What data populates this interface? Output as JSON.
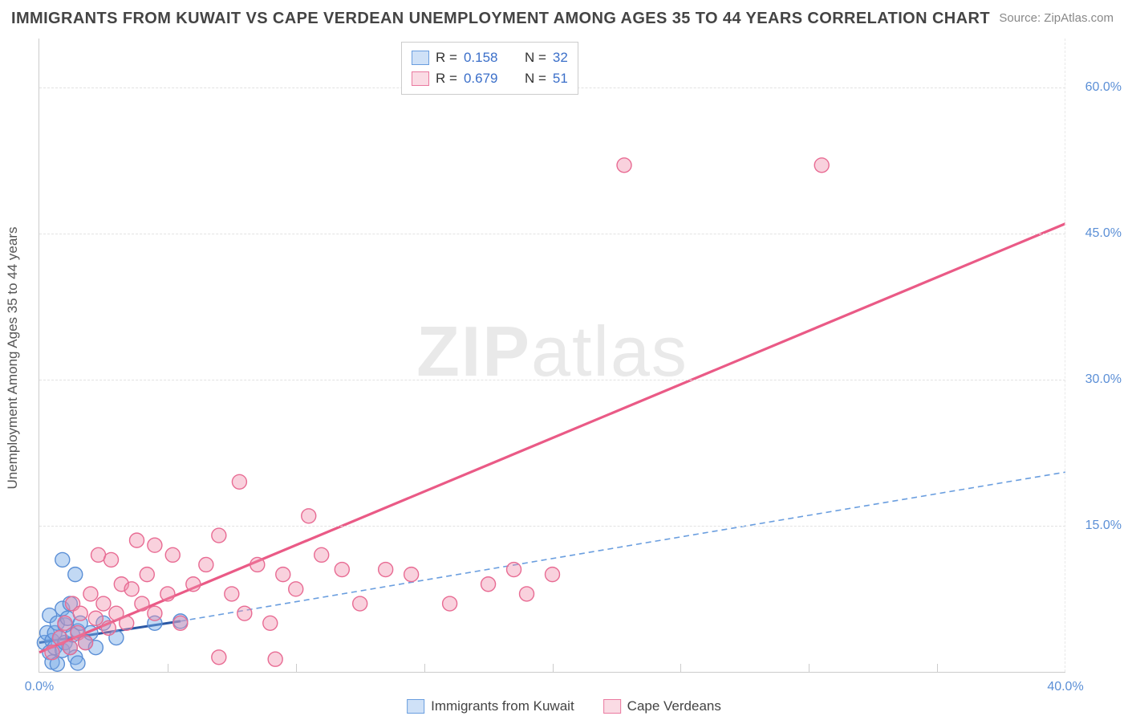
{
  "title": "IMMIGRANTS FROM KUWAIT VS CAPE VERDEAN UNEMPLOYMENT AMONG AGES 35 TO 44 YEARS CORRELATION CHART",
  "source_prefix": "Source: ",
  "source_name": "ZipAtlas.com",
  "yaxis_title": "Unemployment Among Ages 35 to 44 years",
  "watermark": "ZIPatlas",
  "chart": {
    "type": "scatter",
    "xlim": [
      0,
      40
    ],
    "ylim": [
      0,
      65
    ],
    "xticks": [
      0,
      40
    ],
    "xtick_labels": [
      "0.0%",
      "40.0%"
    ],
    "x_minor_ticks": [
      5,
      10,
      15,
      20,
      25,
      30,
      35
    ],
    "yticks": [
      15,
      30,
      45,
      60
    ],
    "ytick_labels": [
      "15.0%",
      "30.0%",
      "45.0%",
      "60.0%"
    ],
    "background_color": "#ffffff",
    "grid_color": "#e2e2e2",
    "marker_radius": 9,
    "marker_stroke_width": 1.4,
    "series": [
      {
        "key": "kuwait",
        "label": "Immigrants from Kuwait",
        "fill_color": "rgba(120,170,230,0.45)",
        "stroke_color": "#5b8fd6",
        "swatch_fill": "#cfe1f7",
        "swatch_border": "#6a9edf",
        "r_value": "0.158",
        "n_value": "32",
        "regression": {
          "x0": 0,
          "y0": 3.0,
          "x1": 5.5,
          "y1": 5.2,
          "stroke": "#2b58a5",
          "width": 3,
          "dash": "none",
          "extend": {
            "x1": 40,
            "y1": 20.5,
            "stroke": "#6a9edf",
            "dash": "7 5",
            "width": 1.6
          }
        },
        "points": [
          [
            0.2,
            3.0
          ],
          [
            0.3,
            4.0
          ],
          [
            0.4,
            2.0
          ],
          [
            0.4,
            5.8
          ],
          [
            0.5,
            3.2
          ],
          [
            0.5,
            1.0
          ],
          [
            0.6,
            4.0
          ],
          [
            0.6,
            2.5
          ],
          [
            0.7,
            5.0
          ],
          [
            0.7,
            0.8
          ],
          [
            0.8,
            3.5
          ],
          [
            0.9,
            6.5
          ],
          [
            0.9,
            2.2
          ],
          [
            1.0,
            4.8
          ],
          [
            1.0,
            3.0
          ],
          [
            1.1,
            5.5
          ],
          [
            1.2,
            2.5
          ],
          [
            1.2,
            7.0
          ],
          [
            1.3,
            3.8
          ],
          [
            1.4,
            1.5
          ],
          [
            1.5,
            4.2
          ],
          [
            1.5,
            0.9
          ],
          [
            1.6,
            5.0
          ],
          [
            1.8,
            3.0
          ],
          [
            0.9,
            11.5
          ],
          [
            1.4,
            10.0
          ],
          [
            2.0,
            4.0
          ],
          [
            2.2,
            2.5
          ],
          [
            2.5,
            5.0
          ],
          [
            3.0,
            3.5
          ],
          [
            4.5,
            5.0
          ],
          [
            5.5,
            5.2
          ]
        ]
      },
      {
        "key": "capeverdean",
        "label": "Cape Verdeans",
        "fill_color": "rgba(240,140,170,0.40)",
        "stroke_color": "#e86b93",
        "swatch_fill": "#fadbe4",
        "swatch_border": "#ea7aa0",
        "r_value": "0.679",
        "n_value": "51",
        "regression": {
          "x0": 0,
          "y0": 2.0,
          "x1": 40,
          "y1": 46.0,
          "stroke": "#ea5a86",
          "width": 3.2,
          "dash": "none"
        },
        "points": [
          [
            0.5,
            2.0
          ],
          [
            0.8,
            3.5
          ],
          [
            1.0,
            5.0
          ],
          [
            1.2,
            2.5
          ],
          [
            1.3,
            7.0
          ],
          [
            1.5,
            4.0
          ],
          [
            1.6,
            6.0
          ],
          [
            1.8,
            3.0
          ],
          [
            2.0,
            8.0
          ],
          [
            2.2,
            5.5
          ],
          [
            2.3,
            12.0
          ],
          [
            2.5,
            7.0
          ],
          [
            2.7,
            4.5
          ],
          [
            2.8,
            11.5
          ],
          [
            3.0,
            6.0
          ],
          [
            3.2,
            9.0
          ],
          [
            3.4,
            5.0
          ],
          [
            3.6,
            8.5
          ],
          [
            3.8,
            13.5
          ],
          [
            4.0,
            7.0
          ],
          [
            4.2,
            10.0
          ],
          [
            4.5,
            6.0
          ],
          [
            4.5,
            13.0
          ],
          [
            5.0,
            8.0
          ],
          [
            5.2,
            12.0
          ],
          [
            5.5,
            5.0
          ],
          [
            6.0,
            9.0
          ],
          [
            6.5,
            11.0
          ],
          [
            7.0,
            1.5
          ],
          [
            7.0,
            14.0
          ],
          [
            7.5,
            8.0
          ],
          [
            7.8,
            19.5
          ],
          [
            8.0,
            6.0
          ],
          [
            8.5,
            11.0
          ],
          [
            9.0,
            5.0
          ],
          [
            9.2,
            1.3
          ],
          [
            9.5,
            10.0
          ],
          [
            10.0,
            8.5
          ],
          [
            10.5,
            16.0
          ],
          [
            11.0,
            12.0
          ],
          [
            11.8,
            10.5
          ],
          [
            12.5,
            7.0
          ],
          [
            13.5,
            10.5
          ],
          [
            14.5,
            10.0
          ],
          [
            16.0,
            7.0
          ],
          [
            17.5,
            9.0
          ],
          [
            18.5,
            10.5
          ],
          [
            19.0,
            8.0
          ],
          [
            20.0,
            10.0
          ],
          [
            22.8,
            52.0
          ],
          [
            30.5,
            52.0
          ]
        ]
      }
    ]
  },
  "stats_legend": {
    "r_label": "R  =",
    "n_label": "N  ="
  }
}
